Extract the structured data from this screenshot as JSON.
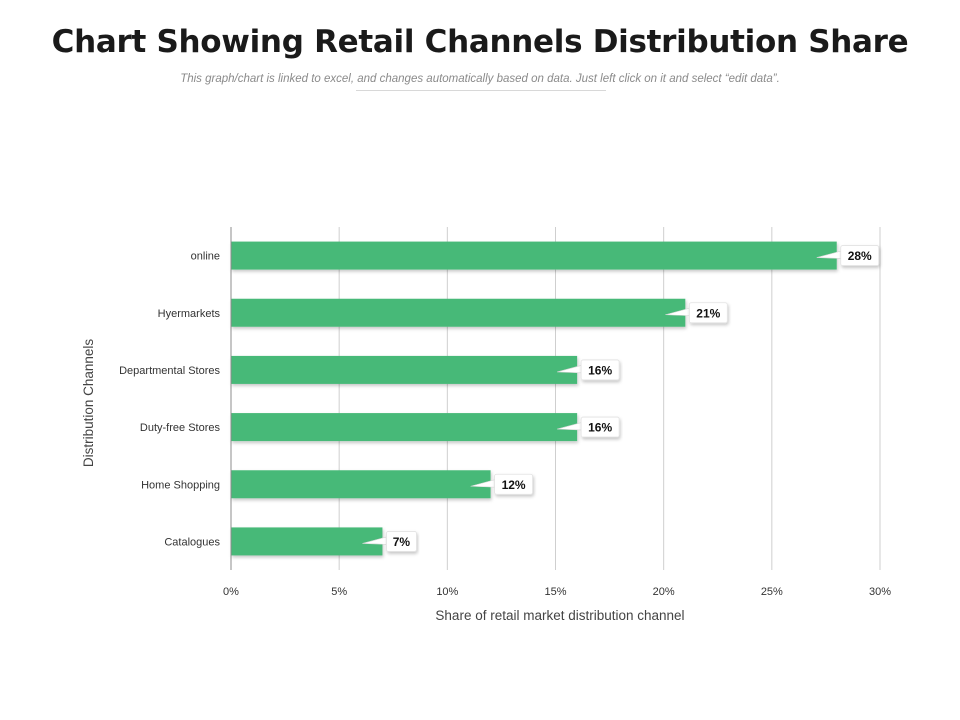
{
  "header": {
    "title": "Chart Showing Retail Channels Distribution Share",
    "subtitle": "This graph/chart is linked to excel, and changes automatically based on data. Just left click on it and select “edit data”."
  },
  "chart_data": {
    "type": "bar",
    "orientation": "horizontal",
    "title": "Chart Showing Retail Channels Distribution Share",
    "xlabel": "Share of retail market distribution channel",
    "ylabel": "Distribution Channels",
    "categories": [
      "online",
      "Hyermarkets",
      "Departmental Stores",
      "Duty-free Stores",
      "Home Shopping",
      "Catalogues"
    ],
    "values": [
      28,
      21,
      16,
      16,
      12,
      7
    ],
    "data_labels": [
      "28%",
      "21%",
      "16%",
      "16%",
      "12%",
      "7%"
    ],
    "xlim": [
      0,
      30
    ],
    "xticks": [
      0,
      5,
      10,
      15,
      20,
      25,
      30
    ],
    "xtick_labels": [
      "0%",
      "5%",
      "10%",
      "15%",
      "20%",
      "25%",
      "30%"
    ],
    "grid": true,
    "bar_color": "#47b978"
  }
}
